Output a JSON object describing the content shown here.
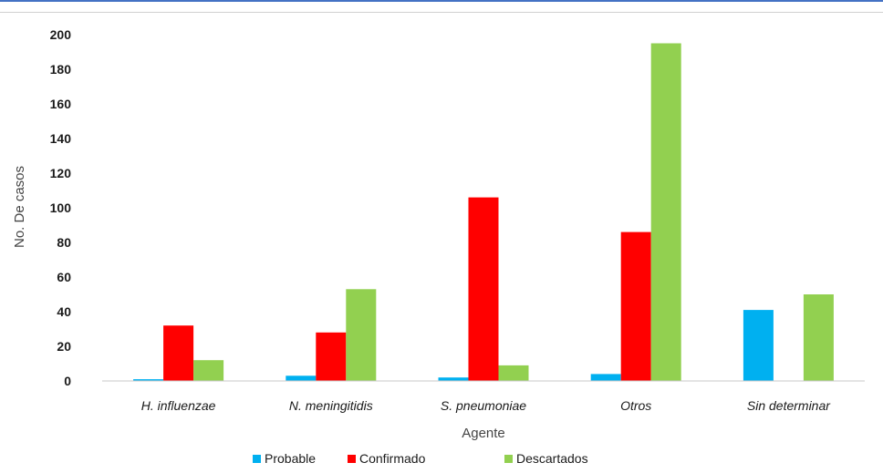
{
  "chart_data": {
    "type": "bar",
    "title": "",
    "xlabel": "Agente",
    "ylabel": "No. De casos",
    "ylim": [
      0,
      200
    ],
    "yticks": [
      0,
      20,
      40,
      60,
      80,
      100,
      120,
      140,
      160,
      180,
      200
    ],
    "categories": [
      "H. influenzae",
      "N. meningitidis",
      "S. pneumoniae",
      "Otros",
      "Sin determinar"
    ],
    "series": [
      {
        "name": "Probable",
        "color": "#00b0f0",
        "values": [
          1,
          3,
          2,
          4,
          41
        ]
      },
      {
        "name": "Confirmado",
        "color": "#ff0000",
        "values": [
          32,
          28,
          106,
          86,
          0
        ]
      },
      {
        "name": "Descartados",
        "color": "#92d050",
        "values": [
          12,
          53,
          9,
          195,
          50
        ]
      }
    ],
    "grid": false,
    "legend": "bottom"
  }
}
